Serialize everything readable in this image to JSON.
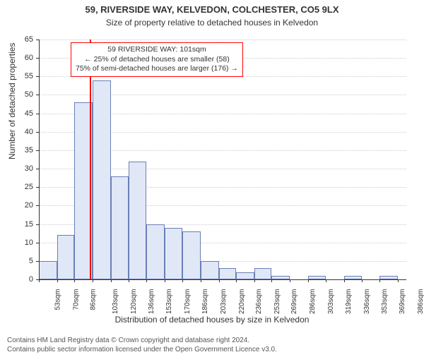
{
  "header": {
    "title": "59, RIVERSIDE WAY, KELVEDON, COLCHESTER, CO5 9LX",
    "subtitle": "Size of property relative to detached houses in Kelvedon"
  },
  "chart": {
    "type": "histogram",
    "ylabel": "Number of detached properties",
    "xlabel": "Distribution of detached houses by size in Kelvedon",
    "ylim": [
      0,
      65
    ],
    "ytick_step": 5,
    "background_color": "#ffffff",
    "grid_color": "#cccccc",
    "axis_color": "#333333",
    "bar_fill": "#e0e7f7",
    "bar_stroke": "#6a7fb5",
    "bar_stroke_width": 1,
    "marker_color": "#ff0000",
    "marker_x_value": 101,
    "x_tick_labels": [
      "53sqm",
      "70sqm",
      "86sqm",
      "103sqm",
      "120sqm",
      "136sqm",
      "153sqm",
      "170sqm",
      "186sqm",
      "203sqm",
      "220sqm",
      "236sqm",
      "253sqm",
      "269sqm",
      "286sqm",
      "303sqm",
      "319sqm",
      "336sqm",
      "353sqm",
      "369sqm",
      "386sqm"
    ],
    "x_tick_values": [
      53,
      70,
      86,
      103,
      120,
      136,
      153,
      170,
      186,
      203,
      220,
      236,
      253,
      269,
      286,
      303,
      319,
      336,
      353,
      369,
      386
    ],
    "x_range": [
      53,
      394
    ],
    "bars": [
      {
        "x0": 53,
        "x1": 70,
        "y": 5
      },
      {
        "x0": 70,
        "x1": 86,
        "y": 12
      },
      {
        "x0": 86,
        "x1": 103,
        "y": 48
      },
      {
        "x0": 103,
        "x1": 120,
        "y": 54
      },
      {
        "x0": 120,
        "x1": 136,
        "y": 28
      },
      {
        "x0": 136,
        "x1": 153,
        "y": 32
      },
      {
        "x0": 153,
        "x1": 170,
        "y": 15
      },
      {
        "x0": 170,
        "x1": 186,
        "y": 14
      },
      {
        "x0": 186,
        "x1": 203,
        "y": 13
      },
      {
        "x0": 203,
        "x1": 220,
        "y": 5
      },
      {
        "x0": 220,
        "x1": 236,
        "y": 3
      },
      {
        "x0": 236,
        "x1": 253,
        "y": 2
      },
      {
        "x0": 253,
        "x1": 269,
        "y": 3
      },
      {
        "x0": 269,
        "x1": 286,
        "y": 1
      },
      {
        "x0": 286,
        "x1": 303,
        "y": 0
      },
      {
        "x0": 303,
        "x1": 319,
        "y": 1
      },
      {
        "x0": 319,
        "x1": 336,
        "y": 0
      },
      {
        "x0": 336,
        "x1": 353,
        "y": 1
      },
      {
        "x0": 353,
        "x1": 369,
        "y": 0
      },
      {
        "x0": 369,
        "x1": 386,
        "y": 1
      }
    ],
    "annotation": {
      "lines": [
        "59 RIVERSIDE WAY: 101sqm",
        "← 25% of detached houses are smaller (58)",
        "75% of semi-detached houses are larger (176) →"
      ],
      "border_color": "#ff0000",
      "text_color": "#333333"
    },
    "label_fontsize": 12,
    "tick_fontsize": 11
  },
  "footer": {
    "line1": "Contains HM Land Registry data © Crown copyright and database right 2024.",
    "line2": "Contains public sector information licensed under the Open Government Licence v3.0."
  }
}
